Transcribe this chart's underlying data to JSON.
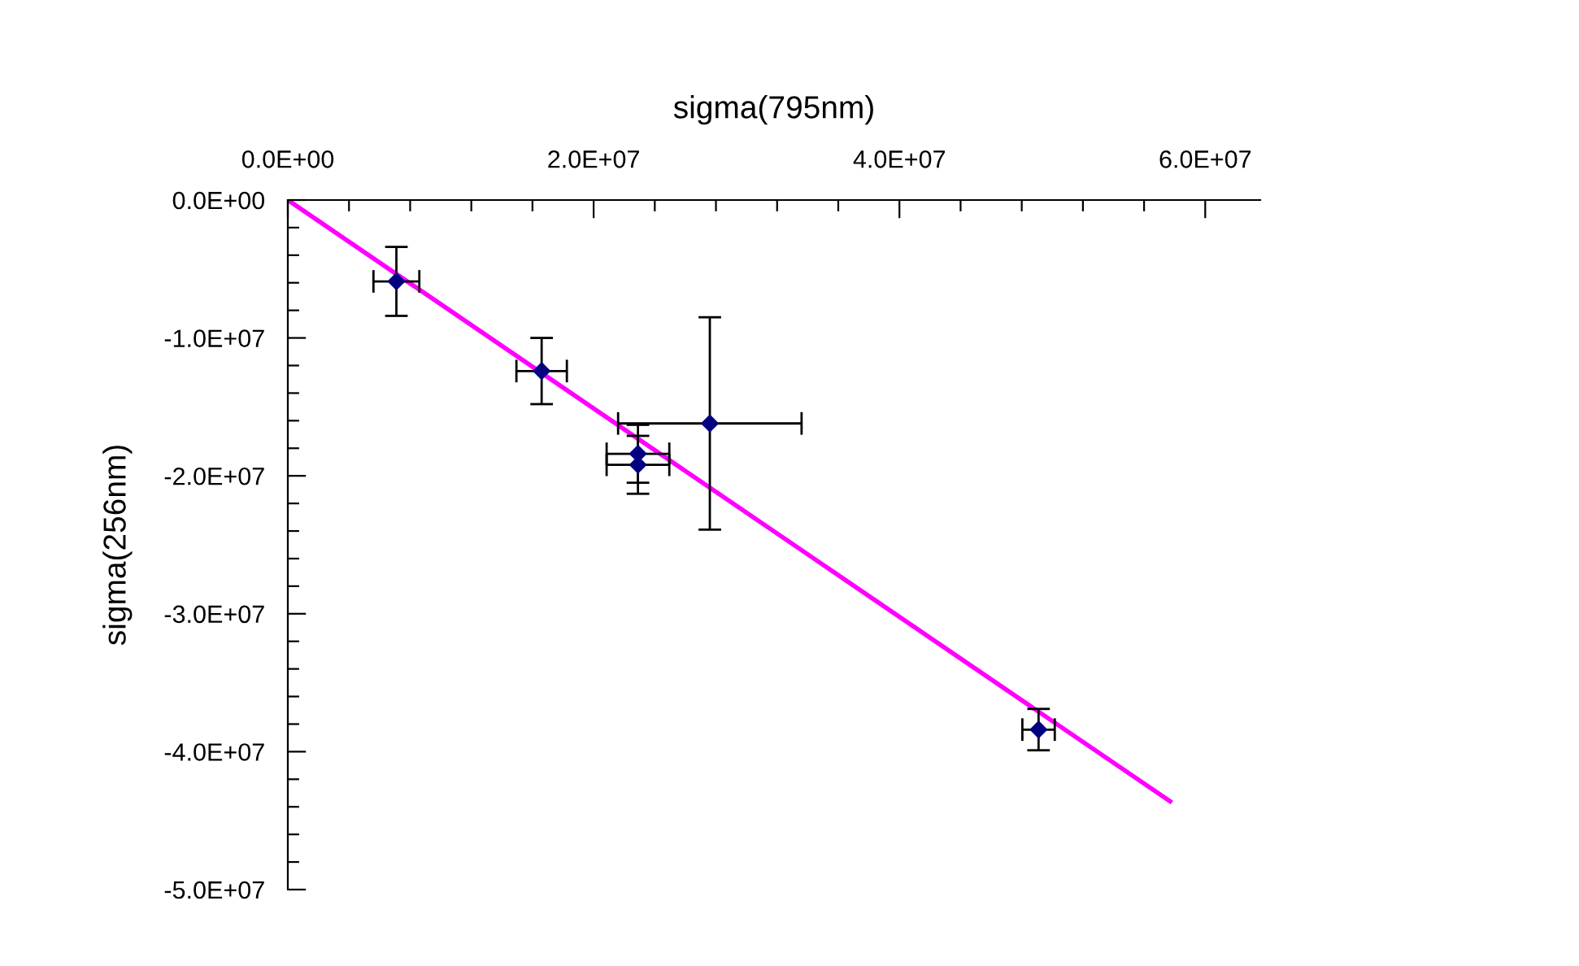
{
  "chart_data": {
    "type": "scatter",
    "xlabel": "sigma(795nm)",
    "ylabel": "sigma(256nm)",
    "xlim": [
      0,
      63600000
    ],
    "ylim": [
      -50000000,
      0
    ],
    "xticks": [
      {
        "value": 0,
        "label": "0.0E+00"
      },
      {
        "value": 4000000,
        "label": null
      },
      {
        "value": 8000000,
        "label": null
      },
      {
        "value": 12000000,
        "label": null
      },
      {
        "value": 16000000,
        "label": null
      },
      {
        "value": 20000000,
        "label": "2.0E+07"
      },
      {
        "value": 24000000,
        "label": null
      },
      {
        "value": 28000000,
        "label": null
      },
      {
        "value": 32000000,
        "label": null
      },
      {
        "value": 36000000,
        "label": null
      },
      {
        "value": 40000000,
        "label": "4.0E+07"
      },
      {
        "value": 44000000,
        "label": null
      },
      {
        "value": 48000000,
        "label": null
      },
      {
        "value": 52000000,
        "label": null
      },
      {
        "value": 56000000,
        "label": null
      },
      {
        "value": 60000000,
        "label": "6.0E+07"
      }
    ],
    "yticks": [
      {
        "value": 0,
        "label": "0.0E+00"
      },
      {
        "value": -2000000,
        "label": null
      },
      {
        "value": -4000000,
        "label": null
      },
      {
        "value": -6000000,
        "label": null
      },
      {
        "value": -8000000,
        "label": null
      },
      {
        "value": -10000000,
        "label": "-1.0E+07"
      },
      {
        "value": -12000000,
        "label": null
      },
      {
        "value": -14000000,
        "label": null
      },
      {
        "value": -16000000,
        "label": null
      },
      {
        "value": -18000000,
        "label": null
      },
      {
        "value": -20000000,
        "label": "-2.0E+07"
      },
      {
        "value": -22000000,
        "label": null
      },
      {
        "value": -24000000,
        "label": null
      },
      {
        "value": -26000000,
        "label": null
      },
      {
        "value": -28000000,
        "label": null
      },
      {
        "value": -30000000,
        "label": "-3.0E+07"
      },
      {
        "value": -32000000,
        "label": null
      },
      {
        "value": -34000000,
        "label": null
      },
      {
        "value": -36000000,
        "label": null
      },
      {
        "value": -38000000,
        "label": null
      },
      {
        "value": -40000000,
        "label": "-4.0E+07"
      },
      {
        "value": -42000000,
        "label": null
      },
      {
        "value": -44000000,
        "label": null
      },
      {
        "value": -46000000,
        "label": null
      },
      {
        "value": -48000000,
        "label": null
      },
      {
        "value": -50000000,
        "label": "-5.0E+07"
      }
    ],
    "grid": false,
    "legend": false,
    "series": [
      {
        "color": "#000080",
        "marker": "diamond",
        "x": [
          7100000,
          16600000,
          22900000,
          22900000,
          27600000,
          49100000
        ],
        "values": [
          -5900000,
          -12400000,
          -18400000,
          -19200000,
          -16200000,
          -38400000
        ],
        "errors": [
          2500000,
          2400000,
          2100000,
          2100000,
          7700000,
          1500000
        ],
        "xerrors": [
          1500000,
          1650000,
          2050000,
          2050000,
          6000000,
          1060000
        ]
      },
      {
        "type": "line",
        "color": "#ff00ff",
        "marker": "none",
        "line_style": "solid",
        "x": [
          0,
          57700000
        ],
        "values": [
          0,
          -43600000
        ]
      }
    ]
  }
}
